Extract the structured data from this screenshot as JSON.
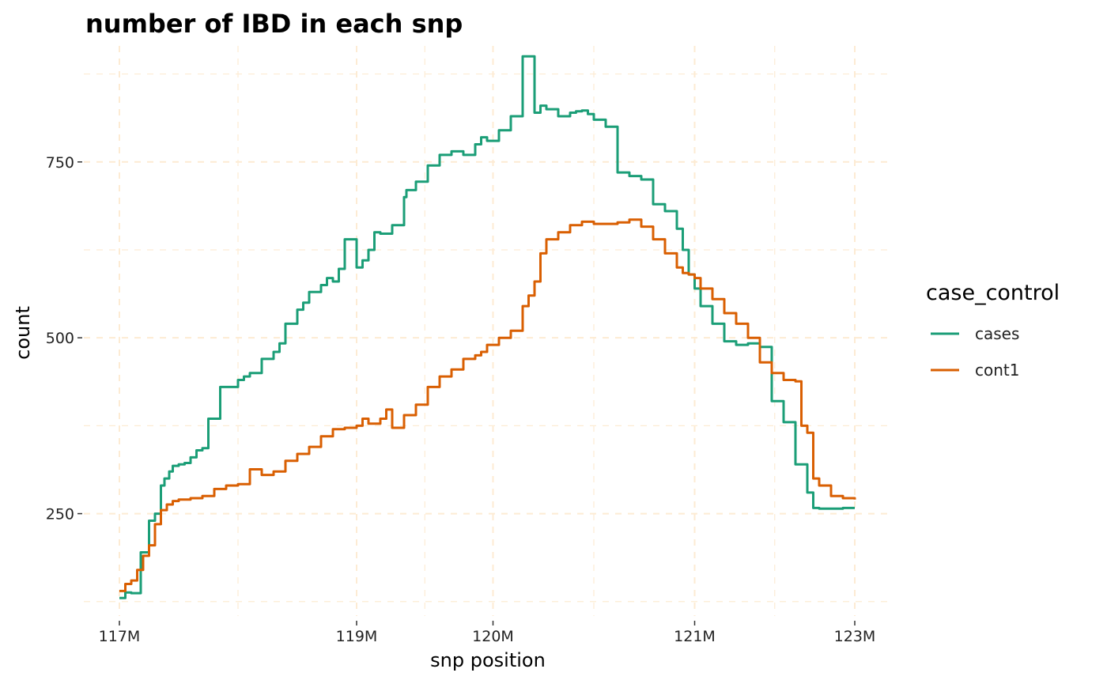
{
  "chart_data": {
    "type": "line",
    "title": "number of IBD in each snp",
    "xlabel": "snp position",
    "ylabel": "count",
    "grid": true,
    "legend": {
      "title": "case_control",
      "placement": "right",
      "entries": [
        "cases",
        "cont1"
      ]
    },
    "x_ticks": [
      {
        "label": "117M",
        "pos": 0.0
      },
      {
        "label": "119M",
        "pos": 2.0
      },
      {
        "label": "120M",
        "pos": 3.15
      },
      {
        "label": "121M",
        "pos": 4.85
      },
      {
        "label": "123M",
        "pos": 6.2
      }
    ],
    "xlim": [
      -0.3,
      6.5
    ],
    "y_ticks": [
      250,
      500,
      750
    ],
    "ylim": [
      100,
      915
    ],
    "colors": {
      "cases": "#1b9e77",
      "cont1": "#d95f02",
      "grid": "#fdebd3"
    },
    "series": [
      {
        "name": "cases",
        "color": "#1b9e77",
        "x": [
          0.0,
          0.05,
          0.1,
          0.18,
          0.25,
          0.3,
          0.35,
          0.38,
          0.42,
          0.45,
          0.5,
          0.55,
          0.6,
          0.65,
          0.7,
          0.75,
          0.85,
          1.0,
          1.05,
          1.1,
          1.2,
          1.3,
          1.35,
          1.4,
          1.5,
          1.55,
          1.6,
          1.7,
          1.75,
          1.8,
          1.85,
          1.9,
          2.0,
          2.05,
          2.1,
          2.15,
          2.2,
          2.3,
          2.4,
          2.42,
          2.5,
          2.6,
          2.7,
          2.8,
          2.9,
          3.0,
          3.05,
          3.1,
          3.2,
          3.3,
          3.4,
          3.5,
          3.55,
          3.6,
          3.7,
          3.8,
          3.85,
          3.9,
          3.95,
          4.0,
          4.05,
          4.1,
          4.2,
          4.3,
          4.4,
          4.5,
          4.6,
          4.7,
          4.75,
          4.8,
          4.85,
          4.9,
          5.0,
          5.1,
          5.2,
          5.3,
          5.4,
          5.5,
          5.6,
          5.7,
          5.8,
          5.85,
          5.9,
          6.0,
          6.1,
          6.2
        ],
        "values": [
          130,
          138,
          137,
          195,
          240,
          250,
          290,
          300,
          310,
          318,
          320,
          322,
          330,
          340,
          343,
          385,
          430,
          440,
          445,
          450,
          470,
          480,
          492,
          520,
          540,
          550,
          565,
          575,
          585,
          580,
          598,
          640,
          600,
          610,
          625,
          650,
          648,
          660,
          700,
          710,
          722,
          745,
          760,
          765,
          760,
          775,
          785,
          780,
          795,
          815,
          900,
          820,
          830,
          825,
          815,
          820,
          822,
          823,
          818,
          810,
          810,
          800,
          735,
          730,
          725,
          690,
          680,
          655,
          625,
          590,
          570,
          545,
          520,
          495,
          490,
          492,
          487,
          410,
          380,
          320,
          280,
          258,
          257,
          257,
          258,
          258
        ]
      },
      {
        "name": "cont1",
        "color": "#d95f02",
        "x": [
          0.0,
          0.05,
          0.1,
          0.15,
          0.2,
          0.25,
          0.3,
          0.35,
          0.4,
          0.45,
          0.5,
          0.6,
          0.7,
          0.8,
          0.9,
          1.0,
          1.1,
          1.2,
          1.3,
          1.4,
          1.5,
          1.6,
          1.7,
          1.8,
          1.9,
          2.0,
          2.05,
          2.1,
          2.2,
          2.25,
          2.3,
          2.4,
          2.5,
          2.6,
          2.7,
          2.8,
          2.9,
          3.0,
          3.05,
          3.1,
          3.2,
          3.3,
          3.4,
          3.45,
          3.5,
          3.55,
          3.6,
          3.7,
          3.8,
          3.9,
          4.0,
          4.05,
          4.1,
          4.2,
          4.3,
          4.4,
          4.5,
          4.6,
          4.7,
          4.75,
          4.8,
          4.85,
          4.9,
          5.0,
          5.1,
          5.2,
          5.3,
          5.4,
          5.5,
          5.6,
          5.7,
          5.75,
          5.8,
          5.85,
          5.9,
          6.0,
          6.1,
          6.2
        ],
        "values": [
          140,
          150,
          155,
          170,
          190,
          205,
          235,
          255,
          263,
          268,
          270,
          272,
          275,
          285,
          290,
          292,
          313,
          305,
          310,
          325,
          335,
          345,
          360,
          370,
          372,
          375,
          385,
          378,
          385,
          398,
          372,
          390,
          405,
          430,
          445,
          455,
          470,
          475,
          480,
          490,
          500,
          510,
          545,
          560,
          580,
          620,
          640,
          650,
          660,
          665,
          662,
          662,
          662,
          664,
          668,
          658,
          640,
          620,
          600,
          592,
          590,
          585,
          570,
          555,
          535,
          520,
          500,
          465,
          450,
          440,
          438,
          375,
          365,
          300,
          290,
          275,
          272,
          270
        ]
      }
    ]
  }
}
